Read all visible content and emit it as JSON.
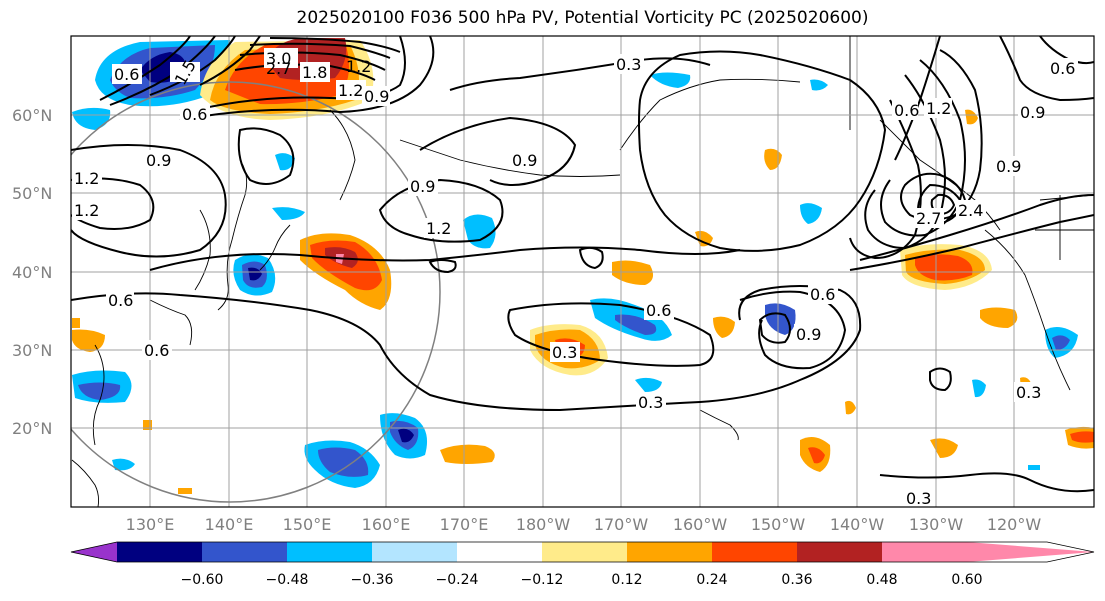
{
  "title": "2025020100 F036 500 hPa PV, Potential Vorticity PC (2025020600)",
  "lat_labels": [
    "60°N",
    "50°N",
    "40°N",
    "30°N",
    "20°N"
  ],
  "lon_labels": [
    "130°E",
    "140°E",
    "150°E",
    "160°E",
    "170°E",
    "180°W",
    "170°W",
    "160°W",
    "150°W",
    "140°W",
    "130°W",
    "120°W"
  ],
  "contour_labels": [
    "0.6",
    "1.5",
    "3.0",
    "2.7",
    "1.8",
    "1.2",
    "0.9",
    "0.6",
    "0.3",
    "0.9",
    "1.2",
    "0.9",
    "1.2",
    "0.9",
    "0.6",
    "0.3",
    "0.3",
    "0.6",
    "0.9",
    "0.3",
    "0.6",
    "0.9",
    "1.2",
    "2.7",
    "2.4",
    "0.6",
    "0.9",
    "0.3",
    "0.6",
    "1.2",
    "1.2",
    "0.6"
  ],
  "colorbar": {
    "colors": [
      "#9933cc",
      "#000080",
      "#3355cc",
      "#00bfff",
      "#b3e5ff",
      "#ffffff",
      "#ffeb8a",
      "#ffa500",
      "#ff4500",
      "#b22222",
      "#ff88aa"
    ],
    "tick_labels": [
      "−0.60",
      "−0.48",
      "−0.36",
      "−0.24",
      "−0.12",
      "0.12",
      "0.24",
      "0.36",
      "0.48",
      "0.60"
    ]
  }
}
